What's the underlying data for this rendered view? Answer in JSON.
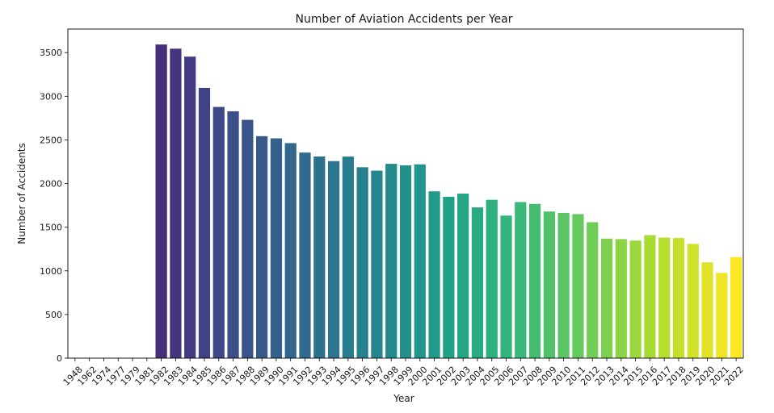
{
  "chart_data": {
    "type": "bar",
    "title": "Number of Aviation Accidents per Year",
    "xlabel": "Year",
    "ylabel": "Number of Accidents",
    "ylim": [
      0,
      3770
    ],
    "yticks": [
      0,
      500,
      1000,
      1500,
      2000,
      2500,
      3000,
      3500
    ],
    "grid": false,
    "legend": "none",
    "palette": "viridis",
    "categories": [
      "1948",
      "1962",
      "1974",
      "1977",
      "1979",
      "1981",
      "1982",
      "1983",
      "1984",
      "1985",
      "1986",
      "1987",
      "1988",
      "1989",
      "1990",
      "1991",
      "1992",
      "1993",
      "1994",
      "1995",
      "1996",
      "1997",
      "1998",
      "1999",
      "2000",
      "2001",
      "2002",
      "2003",
      "2004",
      "2005",
      "2006",
      "2007",
      "2008",
      "2009",
      "2010",
      "2011",
      "2012",
      "2013",
      "2014",
      "2015",
      "2016",
      "2017",
      "2018",
      "2019",
      "2020",
      "2021",
      "2022"
    ],
    "values": [
      1,
      1,
      1,
      2,
      2,
      1,
      3593,
      3545,
      3454,
      3096,
      2878,
      2828,
      2730,
      2543,
      2518,
      2463,
      2355,
      2310,
      2257,
      2309,
      2187,
      2148,
      2226,
      2209,
      2220,
      1911,
      1849,
      1885,
      1727,
      1814,
      1633,
      1788,
      1767,
      1680,
      1664,
      1650,
      1557,
      1369,
      1364,
      1347,
      1409,
      1381,
      1376,
      1309,
      1097,
      977,
      1157
    ]
  }
}
